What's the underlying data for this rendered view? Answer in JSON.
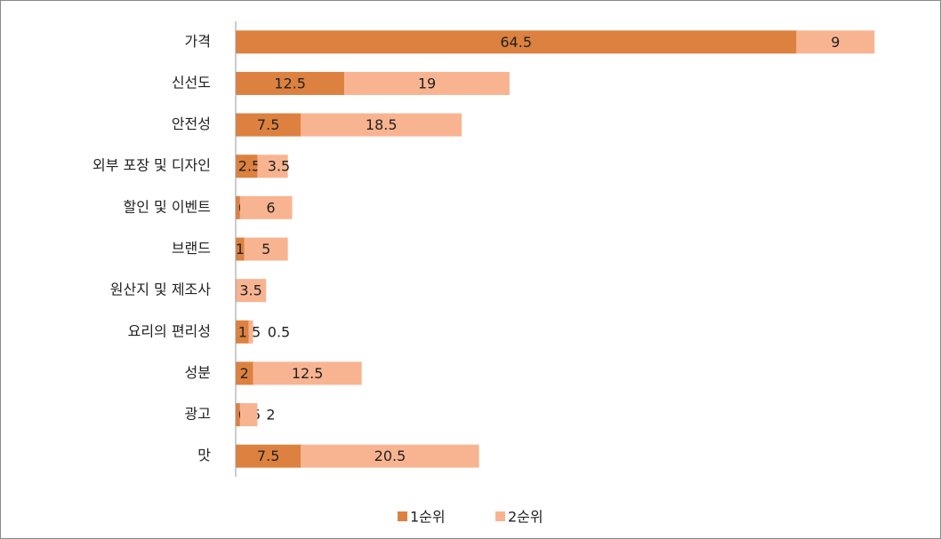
{
  "chart_data": {
    "type": "bar",
    "orientation": "horizontal",
    "stacked": true,
    "categories": [
      "가격",
      "신선도",
      "안전성",
      "외부 포장 및 디자인",
      "할인 및 이벤트",
      "브랜드",
      "원산지 및 제조사",
      "요리의 편리성",
      "성분",
      "광고",
      "맛"
    ],
    "series": [
      {
        "name": "1순위",
        "color": "#dd8140",
        "values": [
          64.5,
          12.5,
          7.5,
          2.5,
          0.5,
          1,
          null,
          1.5,
          2,
          0.5,
          7.5
        ]
      },
      {
        "name": "2순위",
        "color": "#f8b491",
        "values": [
          9,
          19,
          18.5,
          3.5,
          6,
          5,
          3.5,
          0.5,
          12.5,
          2,
          20.5
        ]
      }
    ],
    "xlim": [
      0,
      75
    ],
    "legend": "bottom"
  }
}
